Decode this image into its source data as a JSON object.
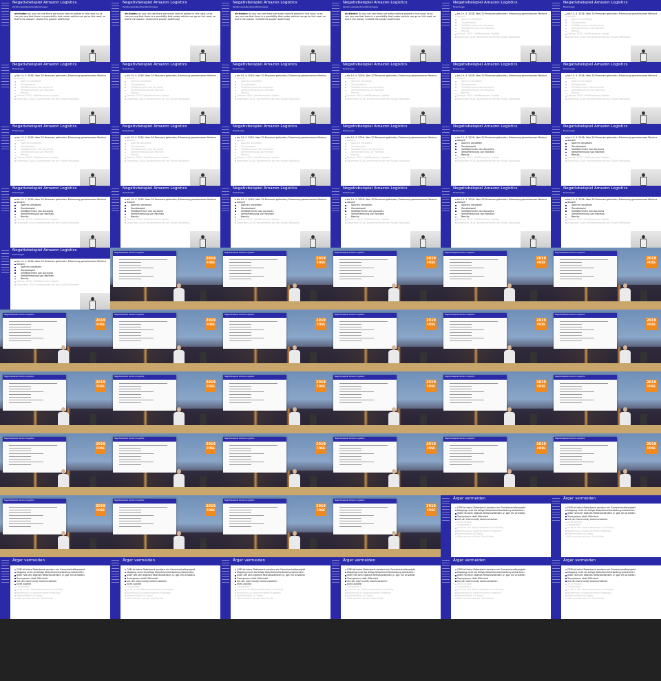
{
  "slides": {
    "intro": {
      "title": "Negativbeispiel Amazon Logistics",
      "subtitle": "Zerstörungsmaßnahmen/Warnhinweise",
      "lead": "air.tlanbo:",
      "text": "As you can see there are motor vehicle parked in this road, so as can you see that there is a possibility that motor vehicle can go on this road, so that's the reason I shared the purple road?emoji"
    },
    "cases": {
      "title": "Negativbeispiel Amazon Logistics",
      "subtitle": "Einstufungen",
      "p1": "bis 14. 4. 2016: über 20 Personen gefunden; Erkennung gemeinsamer Merkmale, Zusichdeutschlgen, Themen",
      "p2": "danach",
      "sub": [
        "Sperren umsetzen",
        "Zonebeispiel",
        "Vielfältemmen von Accounts",
        "Verfolfhemnung von Rechten",
        "Benutz"
      ],
      "p3": "Februar 2015: Vielfältemmen Update",
      "p4": "Dezember 2016: Konfermente bei der Studie Wikipedia"
    },
    "avoid": {
      "title": "Ärger vermeiden",
      "items": [
        "OSM ist keine Datenbank sondern ein Gemeinschaftsprojekt",
        "Mapping nicht als billige Kletpfreinmitarbeitung betrachten",
        "jeder hat sein eigenes Relevanzdenken (z. gpf. ein privates)",
        "Transparenz statt Offenheit",
        "mit der Community kommunizieren",
        "nicht zuviele"
      ],
      "faded_items": [
        "Ortseinfahrt",
        "nicht im der Nacharbeitenden kurzfristig",
        "Beziehung zu kommerziellen Projekten",
        "Stellenkosten ist Tagen",
        "Hilfe werden mit der Geschichte"
      ]
    }
  },
  "stage": {
    "logo_year": "2019",
    "logo_word": "FOSS",
    "projection_title": "Negativbeispiel Amazon Logistics"
  }
}
